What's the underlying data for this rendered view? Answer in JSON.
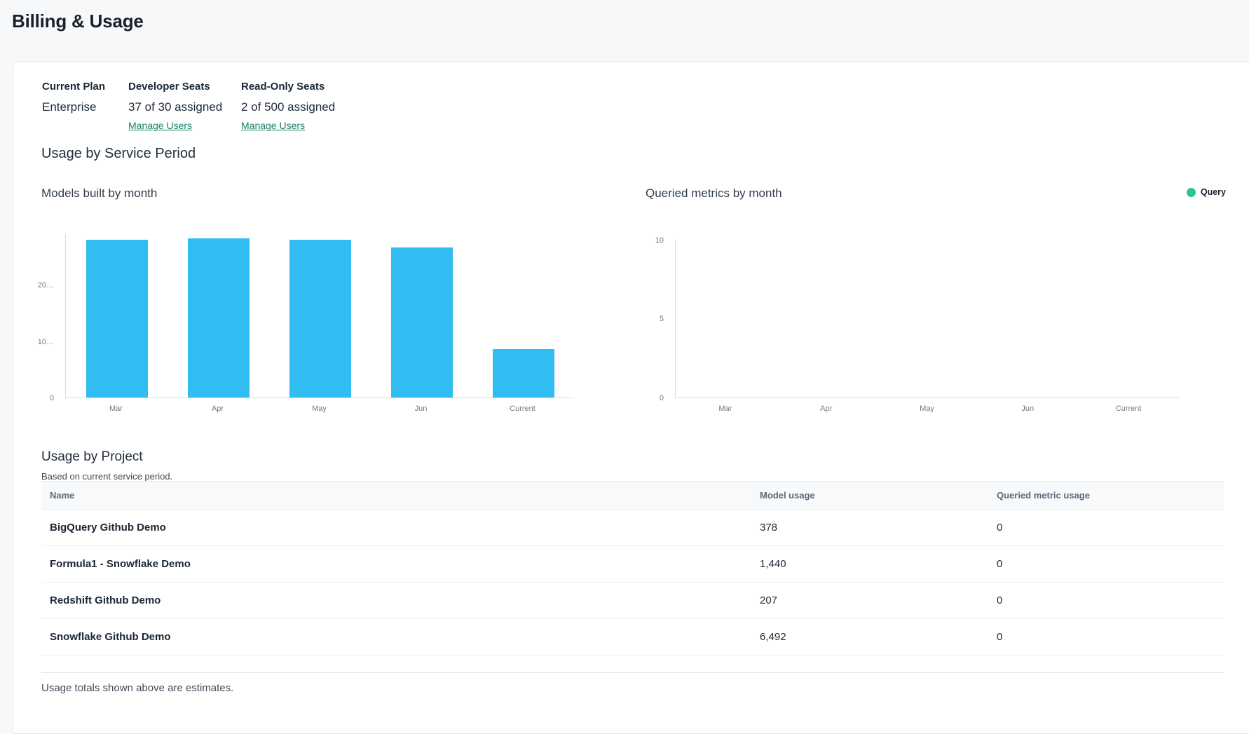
{
  "header": {
    "title": "Billing & Usage"
  },
  "plan": {
    "columns": [
      {
        "label": "Current Plan",
        "value": "Enterprise"
      },
      {
        "label": "Developer Seats",
        "value": "37 of 30 assigned",
        "link": "Manage Users"
      },
      {
        "label": "Read-Only Seats",
        "value": "2 of 500 assigned",
        "link": "Manage Users"
      }
    ]
  },
  "usage_section": {
    "title": "Usage by Service Period"
  },
  "chart_data": [
    {
      "type": "bar",
      "title": "Models built by month",
      "categories": [
        "Mar",
        "Apr",
        "May",
        "Jun",
        "Current"
      ],
      "series": [
        {
          "name": "Models built",
          "color": "#31bdf1",
          "values": [
            28000,
            28200,
            28000,
            26600,
            8600
          ]
        }
      ],
      "yticks": [
        {
          "value": 0,
          "label": "0"
        },
        {
          "value": 10000,
          "label": "10…"
        },
        {
          "value": 20000,
          "label": "20…"
        }
      ],
      "ylim": [
        0,
        29000
      ],
      "xlabel": "",
      "ylabel": "",
      "grid": false,
      "legend": null
    },
    {
      "type": "bar",
      "title": "Queried metrics by month",
      "categories": [
        "Mar",
        "Apr",
        "May",
        "Jun",
        "Current"
      ],
      "series": [
        {
          "name": "Query",
          "color": "#2bc690",
          "values": [
            0,
            0,
            0,
            0,
            0
          ]
        }
      ],
      "yticks": [
        {
          "value": 0,
          "label": "0"
        },
        {
          "value": 5,
          "label": "5"
        },
        {
          "value": 10,
          "label": "10"
        }
      ],
      "ylim": [
        0,
        10
      ],
      "xlabel": "",
      "ylabel": "",
      "grid": false,
      "legend": {
        "position": "top-right",
        "entries": [
          {
            "label": "Query",
            "color": "#2bc690"
          }
        ]
      }
    }
  ],
  "project_section": {
    "title": "Usage by Project",
    "subtitle": "Based on current service period.",
    "columns": [
      "Name",
      "Model usage",
      "Queried metric usage"
    ],
    "rows": [
      [
        "BigQuery Github Demo",
        "378",
        "0"
      ],
      [
        "Formula1 - Snowflake Demo",
        "1,440",
        "0"
      ],
      [
        "Redshift Github Demo",
        "207",
        "0"
      ],
      [
        "Snowflake Github Demo",
        "6,492",
        "0"
      ]
    ]
  },
  "footnote": "Usage totals shown above are estimates.",
  "colors": {
    "link": "#14806b",
    "bar_models": "#31bdf1",
    "legend_query": "#2bc690"
  }
}
